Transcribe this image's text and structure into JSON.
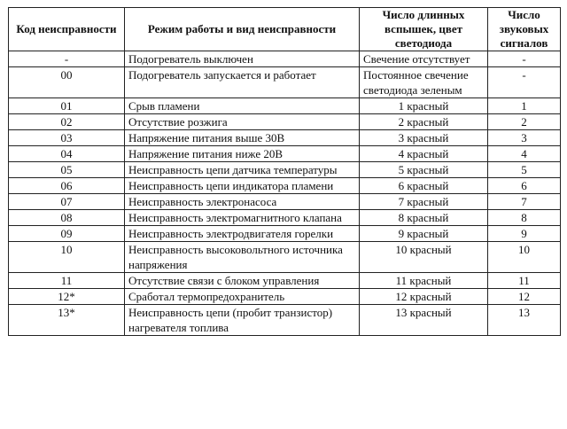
{
  "table": {
    "header": [
      "Код неисправности",
      "Режим работы и вид неисправности",
      "Число длинных вспышек, цвет светодиода",
      "Число звуковых сигналов"
    ],
    "rows": [
      [
        "-",
        "Подогреватель выключен",
        "Свечение отсутствует",
        "-"
      ],
      [
        "00",
        "Подогреватель запускается и работает",
        "Постоянное свечение светодиода зеленым",
        "-"
      ],
      [
        "01",
        "Срыв пламени",
        "1 красный",
        "1"
      ],
      [
        "02",
        "Отсутствие розжига",
        "2 красный",
        "2"
      ],
      [
        "03",
        "Напряжение питания выше 30В",
        "3 красный",
        "3"
      ],
      [
        "04",
        "Напряжение питания ниже 20В",
        "4 красный",
        "4"
      ],
      [
        "05",
        "Неисправность цепи датчика температуры",
        "5 красный",
        "5"
      ],
      [
        "06",
        "Неисправность цепи индикатора пламени",
        "6 красный",
        "6"
      ],
      [
        "07",
        "Неисправность электронасоса",
        "7 красный",
        "7"
      ],
      [
        "08",
        "Неисправность электромагнитного клапана",
        "8 красный",
        "8"
      ],
      [
        "09",
        "Неисправность электродвигателя горелки",
        "9 красный",
        "9"
      ],
      [
        "10",
        "Неисправность высоковольтного источника напряжения",
        "10 красный",
        "10"
      ],
      [
        "11",
        "Отсутствие связи с блоком управления",
        "11 красный",
        "11"
      ],
      [
        "12*",
        "Сработал термопредохранитель",
        "12 красный",
        "12"
      ],
      [
        "13*",
        "Неисправность цепи (пробит транзистор) нагревателя топлива",
        "13 красный",
        "13"
      ]
    ]
  }
}
